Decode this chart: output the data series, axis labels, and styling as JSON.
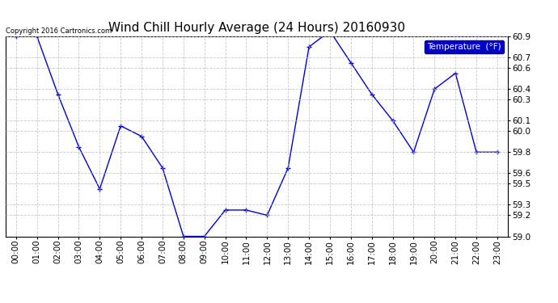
{
  "title": "Wind Chill Hourly Average (24 Hours) 20160930",
  "copyright": "Copyright 2016 Cartronics.com",
  "legend_label": "Temperature  (°F)",
  "x_labels": [
    "00:00",
    "01:00",
    "02:00",
    "03:00",
    "04:00",
    "05:00",
    "06:00",
    "07:00",
    "08:00",
    "09:00",
    "10:00",
    "11:00",
    "12:00",
    "13:00",
    "14:00",
    "15:00",
    "16:00",
    "17:00",
    "18:00",
    "19:00",
    "20:00",
    "21:00",
    "22:00",
    "23:00"
  ],
  "y_values": [
    60.9,
    60.9,
    60.35,
    59.85,
    59.45,
    60.05,
    59.95,
    59.65,
    59.0,
    59.0,
    59.25,
    59.25,
    59.2,
    59.65,
    60.8,
    60.95,
    60.65,
    60.35,
    60.1,
    59.8,
    60.4,
    60.55,
    59.8,
    59.8
  ],
  "ylim": [
    59.0,
    60.9
  ],
  "yticks": [
    59.0,
    59.2,
    59.3,
    59.5,
    59.6,
    59.8,
    60.0,
    60.1,
    60.3,
    60.4,
    60.6,
    60.7,
    60.9
  ],
  "line_color": "#0000CC",
  "marker": "+",
  "marker_size": 5,
  "background_color": "#ffffff",
  "plot_bg_color": "#ffffff",
  "grid_color": "#bbbbbb",
  "title_fontsize": 11,
  "tick_fontsize": 7.5,
  "legend_bg": "#0000CC",
  "legend_text_color": "#ffffff"
}
